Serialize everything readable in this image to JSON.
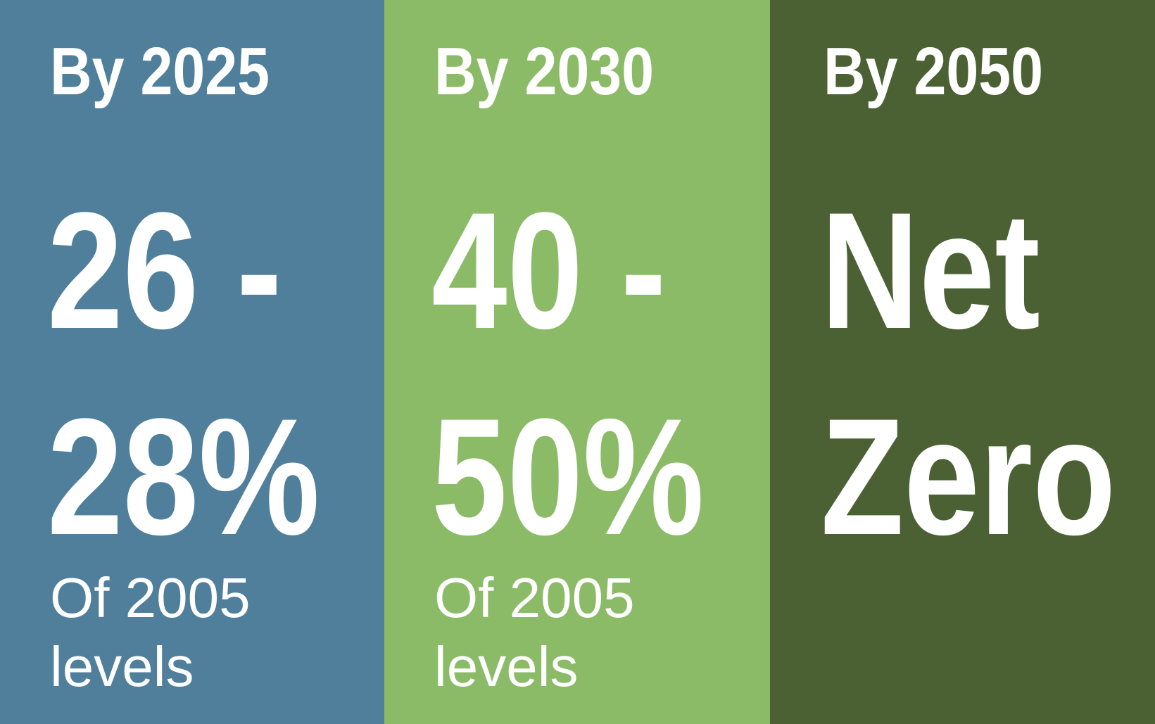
{
  "panels": [
    {
      "heading": "By 2025",
      "figure": [
        "26 -",
        "28%"
      ],
      "note": [
        "Of 2005",
        "levels"
      ]
    },
    {
      "heading": "By 2030",
      "figure": [
        "40 -",
        "50%"
      ],
      "note": [
        "Of 2005",
        "levels"
      ]
    },
    {
      "heading": "By 2050",
      "figure": [
        "Net",
        "Zero"
      ]
    }
  ]
}
